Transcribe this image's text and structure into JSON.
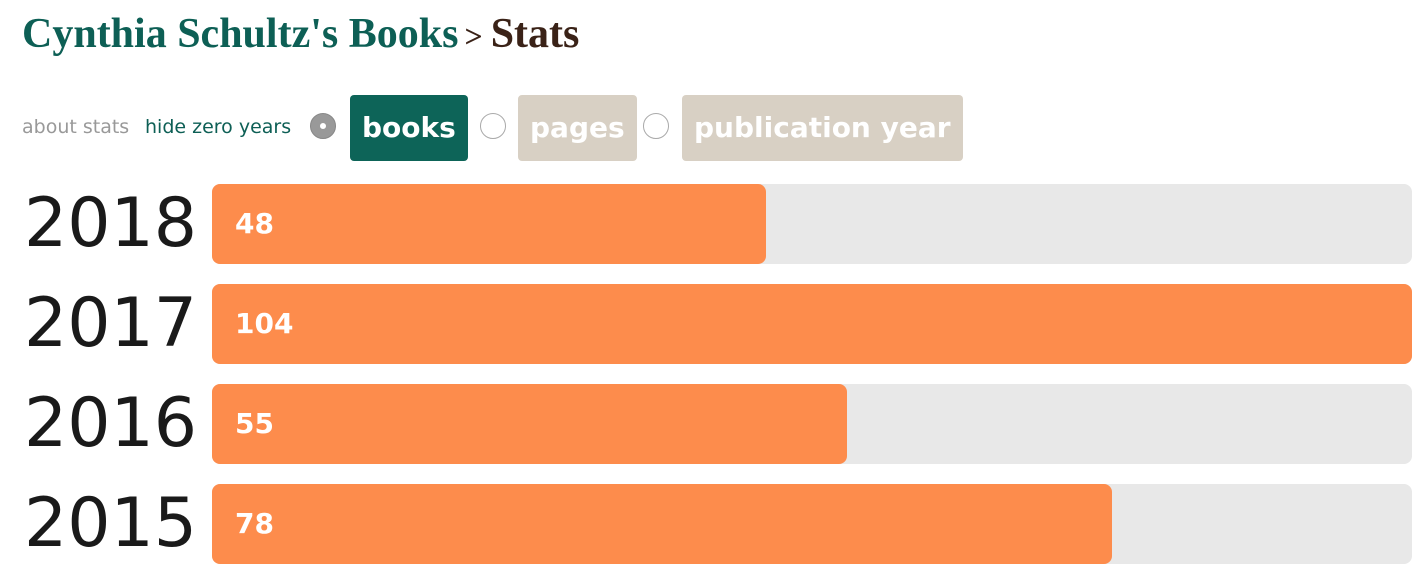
{
  "header": {
    "owner": "Cynthia Schultz's Books",
    "separator": ">",
    "page": "Stats"
  },
  "controls": {
    "about": "about stats",
    "hide_zero": "hide zero years",
    "options": [
      {
        "label": "books",
        "selected": true
      },
      {
        "label": "pages",
        "selected": false
      },
      {
        "label": "publication year",
        "selected": false
      }
    ]
  },
  "chart_data": {
    "type": "bar",
    "orientation": "horizontal",
    "categories": [
      "2018",
      "2017",
      "2016",
      "2015"
    ],
    "values": [
      48,
      104,
      55,
      78
    ],
    "color": "#fd8c4c"
  }
}
